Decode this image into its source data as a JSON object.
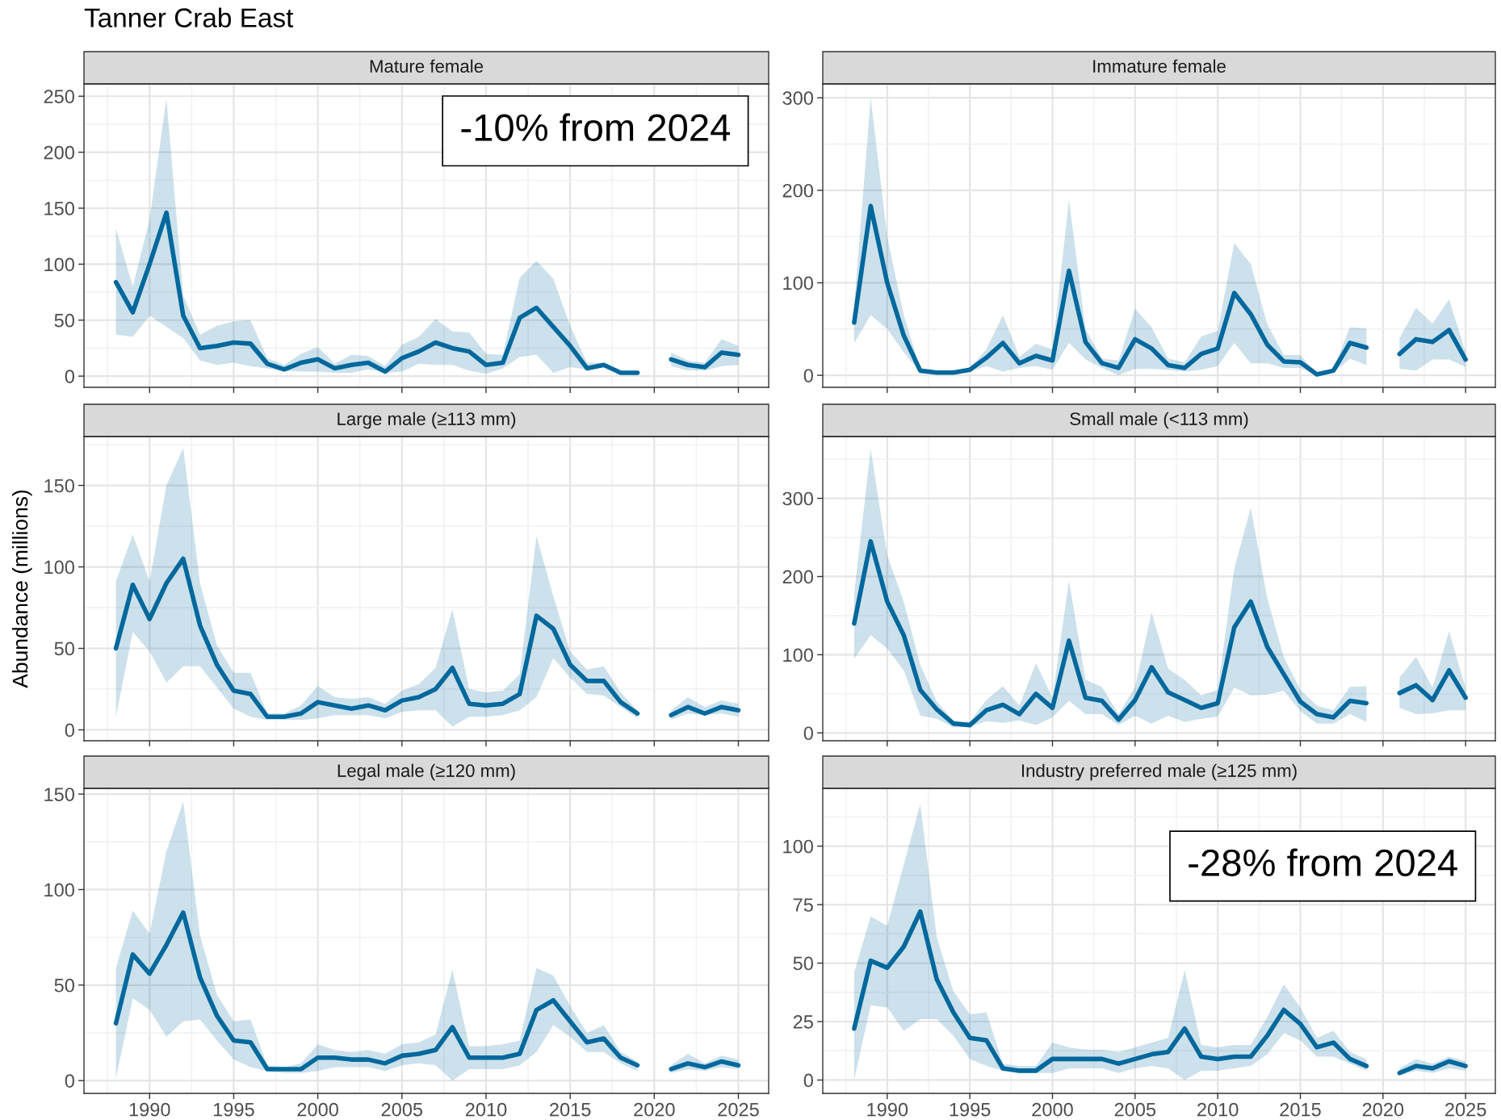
{
  "chart_data": [
    {
      "type": "line",
      "title": "Mature female",
      "annotations": [
        "Tanner Crab East",
        "-10% from 2024"
      ],
      "x": [
        1988,
        1989,
        1990,
        1991,
        1992,
        1993,
        1994,
        1995,
        1996,
        1997,
        1998,
        1999,
        2000,
        2001,
        2002,
        2003,
        2004,
        2005,
        2006,
        2007,
        2008,
        2009,
        2010,
        2011,
        2012,
        2013,
        2014,
        2015,
        2016,
        2017,
        2018,
        2019,
        2020,
        2021,
        2022,
        2023,
        2024,
        2025
      ],
      "series": [
        {
          "color": "#00689c",
          "values": [
            84,
            57,
            100,
            146,
            54,
            25,
            27,
            30,
            29,
            11,
            6,
            12,
            15,
            7,
            10,
            12,
            4,
            16,
            22,
            30,
            25,
            22,
            10,
            12,
            52,
            61,
            44,
            27,
            7,
            10,
            3,
            3,
            null,
            15,
            10,
            8,
            21,
            19
          ],
          "lower": [
            37,
            35,
            54,
            44,
            34,
            14,
            10,
            12,
            9,
            7,
            5,
            4,
            4,
            3,
            3,
            6,
            3,
            4,
            11,
            10,
            10,
            5,
            2,
            7,
            17,
            19,
            3,
            8,
            6,
            8,
            3,
            2,
            null,
            9,
            5,
            5,
            9,
            10
          ],
          "upper": [
            132,
            80,
            140,
            248,
            72,
            37,
            45,
            49,
            50,
            16,
            10,
            20,
            26,
            11,
            19,
            18,
            9,
            28,
            35,
            51,
            40,
            39,
            20,
            19,
            88,
            103,
            87,
            45,
            12,
            12,
            4,
            4,
            null,
            21,
            14,
            12,
            33,
            27
          ]
        }
      ],
      "xlim": [
        1986.1,
        2026.8
      ],
      "xticks": [
        1990,
        1995,
        2000,
        2005,
        2010,
        2015,
        2020,
        2025
      ],
      "ylim": [
        -10,
        261
      ],
      "yticks": [
        0,
        50,
        100,
        150,
        200,
        250
      ],
      "grid": true,
      "tick_labels": "y"
    },
    {
      "type": "line",
      "title": "Immature female",
      "x": [
        1988,
        1989,
        1990,
        1991,
        1992,
        1993,
        1994,
        1995,
        1996,
        1997,
        1998,
        1999,
        2000,
        2001,
        2002,
        2003,
        2004,
        2005,
        2006,
        2007,
        2008,
        2009,
        2010,
        2011,
        2012,
        2013,
        2014,
        2015,
        2016,
        2017,
        2018,
        2019,
        2020,
        2021,
        2022,
        2023,
        2024,
        2025
      ],
      "series": [
        {
          "color": "#00689c",
          "values": [
            57,
            183,
            100,
            43,
            5,
            3,
            3,
            6,
            19,
            35,
            13,
            21,
            16,
            113,
            36,
            13,
            8,
            39,
            29,
            11,
            8,
            23,
            29,
            89,
            66,
            33,
            15,
            14,
            1,
            5,
            35,
            30,
            null,
            23,
            39,
            36,
            49,
            17
          ],
          "lower": [
            35,
            65,
            50,
            25,
            3,
            2,
            2,
            4,
            10,
            4,
            8,
            10,
            6,
            35,
            17,
            8,
            0,
            7,
            7,
            6,
            4,
            6,
            10,
            35,
            13,
            13,
            8,
            8,
            0,
            3,
            18,
            11,
            null,
            7,
            5,
            17,
            17,
            9
          ],
          "upper": [
            75,
            300,
            150,
            65,
            7,
            4,
            4,
            8,
            28,
            65,
            20,
            34,
            28,
            190,
            50,
            18,
            16,
            72,
            52,
            18,
            14,
            42,
            48,
            143,
            120,
            55,
            22,
            22,
            2,
            7,
            52,
            51,
            null,
            40,
            73,
            56,
            82,
            25
          ]
        }
      ],
      "xlim": [
        1986.1,
        2026.8
      ],
      "xticks": [
        1990,
        1995,
        2000,
        2005,
        2010,
        2015,
        2020,
        2025
      ],
      "ylim": [
        -13,
        315
      ],
      "yticks": [
        0,
        100,
        200,
        300
      ],
      "grid": true,
      "tick_labels": "y"
    },
    {
      "type": "line",
      "title": "Large male (≥113 mm)",
      "ylabel": "Abundance (millions)",
      "x": [
        1988,
        1989,
        1990,
        1991,
        1992,
        1993,
        1994,
        1995,
        1996,
        1997,
        1998,
        1999,
        2000,
        2001,
        2002,
        2003,
        2004,
        2005,
        2006,
        2007,
        2008,
        2009,
        2010,
        2011,
        2012,
        2013,
        2014,
        2015,
        2016,
        2017,
        2018,
        2019,
        2020,
        2021,
        2022,
        2023,
        2024,
        2025
      ],
      "series": [
        {
          "color": "#00689c",
          "values": [
            50,
            89,
            68,
            90,
            105,
            64,
            40,
            24,
            22,
            8,
            8,
            10,
            17,
            15,
            13,
            15,
            12,
            18,
            20,
            25,
            38,
            16,
            15,
            16,
            22,
            70,
            62,
            40,
            30,
            30,
            17,
            10,
            null,
            9,
            14,
            10,
            14,
            12
          ],
          "lower": [
            8,
            60,
            48,
            29,
            39,
            39,
            26,
            13,
            8,
            6,
            6,
            6,
            7,
            9,
            9,
            9,
            7,
            11,
            12,
            12,
            2,
            8,
            8,
            9,
            12,
            20,
            44,
            32,
            22,
            21,
            14,
            7,
            null,
            6,
            10,
            9,
            10,
            8
          ],
          "upper": [
            91,
            120,
            91,
            150,
            173,
            90,
            52,
            35,
            35,
            10,
            10,
            15,
            27,
            20,
            19,
            20,
            16,
            24,
            28,
            38,
            74,
            25,
            23,
            24,
            34,
            119,
            82,
            48,
            37,
            39,
            23,
            12,
            null,
            12,
            20,
            14,
            18,
            16
          ]
        }
      ],
      "xlim": [
        1986.1,
        2026.8
      ],
      "xticks": [
        1990,
        1995,
        2000,
        2005,
        2010,
        2015,
        2020,
        2025
      ],
      "ylim": [
        -6.7,
        180
      ],
      "yticks": [
        0,
        50,
        100,
        150
      ],
      "grid": true,
      "tick_labels": "y"
    },
    {
      "type": "line",
      "title": "Small male (<113 mm)",
      "x": [
        1988,
        1989,
        1990,
        1991,
        1992,
        1993,
        1994,
        1995,
        1996,
        1997,
        1998,
        1999,
        2000,
        2001,
        2002,
        2003,
        2004,
        2005,
        2006,
        2007,
        2008,
        2009,
        2010,
        2011,
        2012,
        2013,
        2014,
        2015,
        2016,
        2017,
        2018,
        2019,
        2020,
        2021,
        2022,
        2023,
        2024,
        2025
      ],
      "series": [
        {
          "color": "#00689c",
          "values": [
            140,
            245,
            168,
            125,
            55,
            30,
            12,
            10,
            29,
            36,
            24,
            50,
            32,
            118,
            45,
            41,
            17,
            42,
            84,
            52,
            42,
            32,
            38,
            135,
            168,
            110,
            75,
            40,
            24,
            20,
            41,
            38,
            null,
            51,
            61,
            42,
            80,
            45
          ],
          "lower": [
            95,
            125,
            108,
            80,
            22,
            18,
            7,
            8,
            15,
            13,
            16,
            10,
            20,
            41,
            24,
            24,
            10,
            22,
            12,
            22,
            14,
            18,
            21,
            58,
            48,
            49,
            54,
            28,
            12,
            12,
            24,
            14,
            null,
            32,
            24,
            25,
            29,
            29
          ],
          "upper": [
            178,
            363,
            227,
            168,
            87,
            40,
            16,
            14,
            42,
            60,
            35,
            89,
            45,
            195,
            68,
            59,
            24,
            59,
            154,
            82,
            68,
            48,
            55,
            210,
            288,
            172,
            97,
            55,
            35,
            29,
            59,
            60,
            null,
            71,
            97,
            58,
            130,
            57
          ]
        }
      ],
      "xlim": [
        1986.1,
        2026.8
      ],
      "xticks": [
        1990,
        1995,
        2000,
        2005,
        2010,
        2015,
        2020,
        2025
      ],
      "ylim": [
        -10,
        379
      ],
      "yticks": [
        0,
        100,
        200,
        300
      ],
      "grid": true,
      "tick_labels": "y"
    },
    {
      "type": "line",
      "title": "Legal male (≥120 mm)",
      "x": [
        1988,
        1989,
        1990,
        1991,
        1992,
        1993,
        1994,
        1995,
        1996,
        1997,
        1998,
        1999,
        2000,
        2001,
        2002,
        2003,
        2004,
        2005,
        2006,
        2007,
        2008,
        2009,
        2010,
        2011,
        2012,
        2013,
        2014,
        2015,
        2016,
        2017,
        2018,
        2019,
        2020,
        2021,
        2022,
        2023,
        2024,
        2025
      ],
      "series": [
        {
          "color": "#00689c",
          "values": [
            30,
            66,
            56,
            71,
            88,
            54,
            34,
            21,
            20,
            6,
            6,
            6,
            12,
            12,
            11,
            11,
            9,
            13,
            14,
            16,
            28,
            12,
            12,
            12,
            14,
            37,
            42,
            31,
            20,
            22,
            12,
            8,
            null,
            6,
            9,
            7,
            10,
            8
          ],
          "lower": [
            1,
            43,
            37,
            23,
            31,
            32,
            21,
            11,
            7,
            5,
            4,
            4,
            5,
            7,
            7,
            7,
            5,
            8,
            9,
            8,
            0,
            6,
            6,
            6,
            8,
            15,
            29,
            23,
            15,
            15,
            9,
            5,
            null,
            4,
            6,
            5,
            7,
            6
          ],
          "upper": [
            59,
            89,
            77,
            120,
            146,
            76,
            45,
            31,
            32,
            8,
            7,
            9,
            19,
            16,
            15,
            16,
            14,
            19,
            20,
            24,
            58,
            18,
            18,
            19,
            21,
            59,
            55,
            39,
            25,
            29,
            15,
            10,
            null,
            8,
            14,
            9,
            13,
            11
          ]
        }
      ],
      "xlim": [
        1986.1,
        2026.8
      ],
      "xticks": [
        1990,
        1995,
        2000,
        2005,
        2010,
        2015,
        2020,
        2025
      ],
      "ylim": [
        -6.7,
        153
      ],
      "yticks": [
        0,
        50,
        100,
        150
      ],
      "grid": true
    },
    {
      "type": "line",
      "title": "Industry preferred male (≥125 mm)",
      "annotations": [
        "-28% from 2024"
      ],
      "x": [
        1988,
        1989,
        1990,
        1991,
        1992,
        1993,
        1994,
        1995,
        1996,
        1997,
        1998,
        1999,
        2000,
        2001,
        2002,
        2003,
        2004,
        2005,
        2006,
        2007,
        2008,
        2009,
        2010,
        2011,
        2012,
        2013,
        2014,
        2015,
        2016,
        2017,
        2018,
        2019,
        2020,
        2021,
        2022,
        2023,
        2024,
        2025
      ],
      "series": [
        {
          "color": "#00689c",
          "values": [
            22,
            51,
            48,
            57,
            72,
            43,
            29,
            18,
            17,
            5,
            4,
            4,
            9,
            9,
            9,
            9,
            7,
            9,
            11,
            12,
            22,
            10,
            9,
            10,
            10,
            19,
            30,
            24,
            14,
            16,
            9,
            6,
            null,
            3,
            6,
            5,
            8,
            6
          ],
          "lower": [
            0,
            32,
            31,
            21,
            26,
            26,
            19,
            9,
            6,
            4,
            3,
            3,
            3,
            5,
            5,
            5,
            3,
            5,
            6,
            5,
            0,
            4,
            4,
            5,
            6,
            11,
            20,
            17,
            10,
            10,
            7,
            4,
            null,
            2,
            4,
            3,
            5,
            4
          ],
          "upper": [
            46,
            70,
            66,
            92,
            118,
            61,
            38,
            28,
            29,
            7,
            6,
            6,
            16,
            14,
            13,
            13,
            12,
            14,
            16,
            18,
            47,
            15,
            14,
            15,
            15,
            27,
            41,
            31,
            18,
            21,
            12,
            9,
            null,
            5,
            9,
            7,
            10,
            8
          ]
        }
      ],
      "xlim": [
        1986.1,
        2026.8
      ],
      "xticks": [
        1990,
        1995,
        2000,
        2005,
        2010,
        2015,
        2020,
        2025
      ],
      "ylim": [
        -5.7,
        124.7
      ],
      "yticks": [
        0,
        25,
        50,
        75,
        100
      ],
      "grid": true
    }
  ]
}
